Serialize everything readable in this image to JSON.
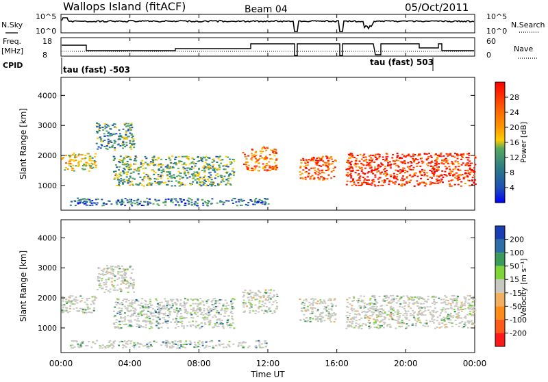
{
  "header": {
    "station": "Wallops Island (fitACF)",
    "beam": "Beam 04",
    "date": "05/Oct/2011"
  },
  "top_panels": {
    "nsky_label": "N.Sky",
    "nsky_ticks": [
      "10^5",
      "10^0"
    ],
    "nsearch_label": "N.Search",
    "nsearch_ticks": [
      "10^5",
      "10^0"
    ],
    "freq_label": "Freq.",
    "freq_unit": "[MHz]",
    "freq_ticks": [
      "18",
      "8"
    ],
    "nave_label": "Nave",
    "nave_ticks": [
      "60",
      "0"
    ],
    "cpid_label": "CPID",
    "cpid_segments": [
      "tau (fast) -503",
      "tau (fast) 503"
    ]
  },
  "colors": {
    "power_scale": [
      "#0000ff",
      "#1e4fb8",
      "#2f7f80",
      "#58a860",
      "#ffcc00",
      "#ff9900",
      "#ff6000",
      "#ff1a00",
      "#ff0000"
    ],
    "velocity_scale": [
      "#1a3fb4",
      "#2e6fa8",
      "#3b9c5a",
      "#7fd43a",
      "#c8c8c0",
      "#f0b060",
      "#ff8c1a",
      "#ff5a1a",
      "#ff1a1a"
    ],
    "ground_scatter": "#c8c8c0"
  },
  "chart_data": [
    {
      "type": "heatmap",
      "name": "power",
      "xlabel": "Time UT",
      "ylabel": "Slant Range [km]",
      "xlim": [
        0,
        24
      ],
      "ylim": [
        180,
        4600
      ],
      "x_ticks": [
        "00:00",
        "04:00",
        "08:00",
        "12:00",
        "16:00",
        "20:00",
        "00:00"
      ],
      "y_ticks": [
        "1000",
        "2000",
        "3000",
        "4000"
      ],
      "colorbar_label": "Power [dB]",
      "colorbar_ticks": [
        "28",
        "24",
        "20",
        "16",
        "12",
        "8",
        "4"
      ],
      "colorbar_range": [
        0,
        32
      ],
      "data_gaps_hours": [
        [
          13.5,
          13.8
        ],
        [
          15.9,
          16.5
        ]
      ],
      "echo_regions": [
        {
          "t_start": 0.0,
          "t_end": 2.0,
          "range_start": 1500,
          "range_end": 2100,
          "level": 16
        },
        {
          "t_start": 2.0,
          "t_end": 4.2,
          "range_start": 2200,
          "range_end": 3100,
          "level": 10
        },
        {
          "t_start": 3.0,
          "t_end": 10.0,
          "range_start": 1000,
          "range_end": 2000,
          "level": 12
        },
        {
          "t_start": 10.5,
          "t_end": 12.5,
          "range_start": 1500,
          "range_end": 2300,
          "level": 22
        },
        {
          "t_start": 13.8,
          "t_end": 15.9,
          "range_start": 1200,
          "range_end": 2000,
          "level": 24
        },
        {
          "t_start": 16.5,
          "t_end": 24.0,
          "range_start": 1000,
          "range_end": 2100,
          "level": 26
        },
        {
          "t_start": 0.5,
          "t_end": 12.0,
          "range_start": 350,
          "range_end": 600,
          "level": 8
        }
      ]
    },
    {
      "type": "heatmap",
      "name": "velocity",
      "xlabel": "Time UT",
      "ylabel": "Slant Range [km]",
      "xlim": [
        0,
        24
      ],
      "ylim": [
        180,
        4600
      ],
      "x_ticks": [
        "00:00",
        "04:00",
        "08:00",
        "12:00",
        "16:00",
        "20:00",
        "00:00"
      ],
      "y_ticks": [
        "1000",
        "2000",
        "3000",
        "4000"
      ],
      "colorbar_label": "Velocity [m s⁻¹]",
      "colorbar_ticks": [
        "200",
        "100",
        "50",
        "15",
        "-15",
        "-50",
        "-100",
        "-200"
      ],
      "colorbar_range": [
        -250,
        250
      ],
      "data_gaps_hours": [
        [
          13.5,
          13.8
        ],
        [
          15.9,
          16.5
        ]
      ],
      "echo_regions": [
        {
          "t_start": 0.0,
          "t_end": 2.0,
          "range_start": 1500,
          "range_end": 2100,
          "level": 0
        },
        {
          "t_start": 2.0,
          "t_end": 4.2,
          "range_start": 2200,
          "range_end": 3100,
          "level": 0
        },
        {
          "t_start": 3.0,
          "t_end": 10.0,
          "range_start": 1000,
          "range_end": 2000,
          "level": 40
        },
        {
          "t_start": 10.5,
          "t_end": 12.5,
          "range_start": 1500,
          "range_end": 2300,
          "level": 0
        },
        {
          "t_start": 13.8,
          "t_end": 15.9,
          "range_start": 1200,
          "range_end": 2000,
          "level": 0
        },
        {
          "t_start": 16.5,
          "t_end": 24.0,
          "range_start": 1000,
          "range_end": 2100,
          "level": 0
        },
        {
          "t_start": 0.5,
          "t_end": 12.0,
          "range_start": 350,
          "range_end": 600,
          "level": 30
        }
      ]
    }
  ]
}
